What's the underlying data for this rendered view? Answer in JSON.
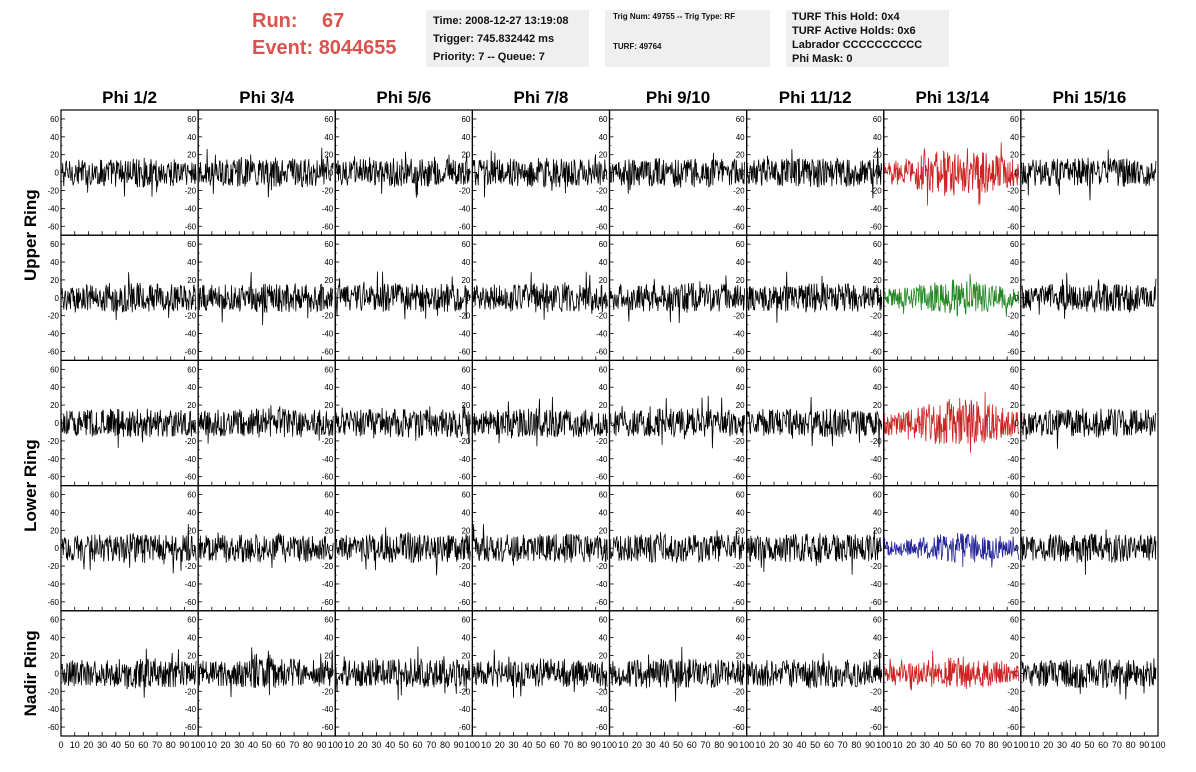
{
  "header": {
    "run_label": "Run:",
    "run_value": "67",
    "event_label": "Event:",
    "event_value": "8044655",
    "time": "Time: 2008-12-27 13:19:08",
    "trigger": "Trigger: 745.832442 ms",
    "priority": "Priority: 7 -- Queue: 7",
    "trig_num": "Trig Num: 49755 -- Trig Type: RF",
    "turf": "TURF: 49764",
    "turf_this_hold": "TURF This Hold: 0x4",
    "turf_active_holds": "TURF Active Holds: 0x6",
    "labrador": "Labrador CCCCCCCCCC",
    "phi_mask": "Phi Mask: 0"
  },
  "chart_data": {
    "type": "line",
    "columns": [
      "Phi 1/2",
      "Phi 3/4",
      "Phi 5/6",
      "Phi 7/8",
      "Phi 9/10",
      "Phi 11/12",
      "Phi 13/14",
      "Phi 15/16"
    ],
    "row_groups": [
      {
        "label": "Upper Ring",
        "rows": [
          0,
          1
        ]
      },
      {
        "label": "Lower Ring",
        "rows": [
          2,
          3
        ]
      },
      {
        "label": "Nadir Ring",
        "rows": [
          4
        ]
      }
    ],
    "ylim": [
      -70,
      70
    ],
    "yticks": [
      -60,
      -40,
      -20,
      0,
      20,
      40,
      60
    ],
    "xlim": [
      0,
      100
    ],
    "xticks": [
      0,
      10,
      20,
      30,
      40,
      50,
      60,
      70,
      80,
      90,
      100
    ],
    "samples_per_trace": 260,
    "trace_colors": {
      "default": "#000000",
      "red": "#cc2222",
      "green": "#228822",
      "blue": "#22229a"
    },
    "highlighted": [
      {
        "row": 0,
        "col": 6,
        "color": "red",
        "amplitude": 30
      },
      {
        "row": 1,
        "col": 6,
        "color": "green",
        "amplitude": 22
      },
      {
        "row": 2,
        "col": 6,
        "color": "red",
        "amplitude": 30
      },
      {
        "row": 3,
        "col": 6,
        "color": "blue",
        "amplitude": 18
      },
      {
        "row": 4,
        "col": 6,
        "color": "red",
        "amplitude": 20
      }
    ],
    "default_amplitude": 17
  }
}
